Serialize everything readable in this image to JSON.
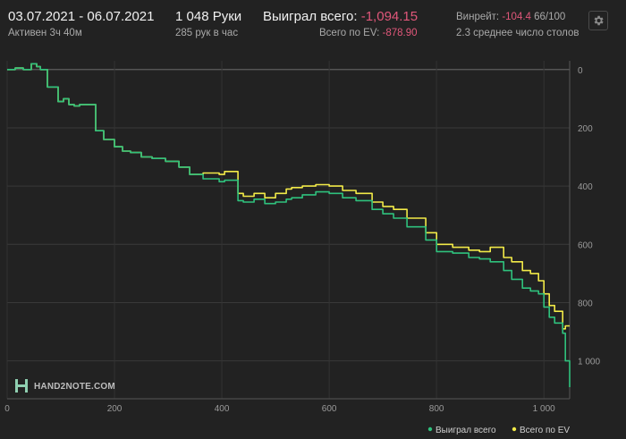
{
  "header": {
    "date_range": "03.07.2021 - 06.07.2021",
    "active": "Активен 3ч 40м",
    "hands": "1 048 Руки",
    "hands_per_hour": "285 рук в час",
    "won_total_label": "Выиграл всего:",
    "won_total_value": "-1,094.15",
    "ev_total_label": "Всего по EV:",
    "ev_total_value": "-878.90",
    "winrate_label": "Винрейт:",
    "winrate_value": "-104.4",
    "winrate_suffix": "66/100",
    "avg_tables": "2.3 среднее число столов",
    "settings_icon": "gear-icon"
  },
  "logo": {
    "text": "HAND2NOTE.COM"
  },
  "colors": {
    "won": "#2fc17d",
    "ev": "#f2ea48",
    "negative": "#e0577a",
    "background": "#222222"
  },
  "chart_data": {
    "type": "line",
    "xlim": [
      0,
      1048
    ],
    "ylim": [
      1130,
      -30
    ],
    "y_inverted": true,
    "x_ticks": [
      "0",
      "200",
      "400",
      "600",
      "800",
      "1 000"
    ],
    "x_tick_values": [
      0,
      200,
      400,
      600,
      800,
      1000
    ],
    "y_ticks": [
      "0",
      "200",
      "400",
      "600",
      "800",
      "1 000"
    ],
    "y_tick_values": [
      0,
      200,
      400,
      600,
      800,
      1000
    ],
    "grid": true,
    "legend": "bottom-right",
    "series": [
      {
        "name": "Выиграл всего",
        "color": "#2fc17d",
        "x": [
          0,
          15,
          30,
          45,
          55,
          62,
          75,
          95,
          105,
          115,
          125,
          135,
          165,
          180,
          200,
          215,
          230,
          250,
          270,
          295,
          320,
          340,
          365,
          380,
          395,
          405,
          430,
          440,
          460,
          480,
          500,
          520,
          530,
          550,
          575,
          600,
          625,
          650,
          680,
          700,
          720,
          745,
          780,
          800,
          830,
          860,
          880,
          900,
          925,
          940,
          960,
          975,
          990,
          1000,
          1010,
          1020,
          1035,
          1040,
          1048
        ],
        "y": [
          0,
          -5,
          0,
          -20,
          -10,
          0,
          60,
          110,
          100,
          120,
          125,
          120,
          210,
          240,
          265,
          280,
          285,
          300,
          305,
          315,
          335,
          360,
          375,
          375,
          385,
          380,
          450,
          455,
          445,
          460,
          455,
          445,
          440,
          430,
          420,
          425,
          440,
          450,
          480,
          495,
          510,
          540,
          585,
          625,
          630,
          645,
          650,
          660,
          690,
          720,
          750,
          760,
          770,
          815,
          850,
          870,
          905,
          1000,
          1090
        ]
      },
      {
        "name": "Всего по EV",
        "color": "#f2ea48",
        "x": [
          0,
          15,
          30,
          45,
          55,
          62,
          75,
          95,
          105,
          115,
          125,
          135,
          165,
          180,
          200,
          215,
          230,
          250,
          270,
          295,
          320,
          340,
          365,
          380,
          395,
          405,
          430,
          440,
          460,
          480,
          500,
          520,
          530,
          550,
          575,
          600,
          625,
          650,
          680,
          700,
          720,
          745,
          780,
          800,
          830,
          860,
          880,
          900,
          925,
          940,
          960,
          975,
          990,
          1000,
          1010,
          1020,
          1035,
          1040,
          1048
        ],
        "y": [
          0,
          -5,
          0,
          -20,
          -10,
          0,
          60,
          110,
          100,
          120,
          125,
          120,
          210,
          240,
          265,
          280,
          285,
          300,
          305,
          315,
          335,
          360,
          355,
          355,
          360,
          350,
          425,
          435,
          425,
          440,
          425,
          410,
          405,
          400,
          395,
          400,
          415,
          425,
          455,
          470,
          480,
          510,
          560,
          600,
          610,
          620,
          625,
          610,
          645,
          660,
          690,
          700,
          725,
          770,
          810,
          830,
          890,
          880,
          880
        ]
      }
    ]
  }
}
